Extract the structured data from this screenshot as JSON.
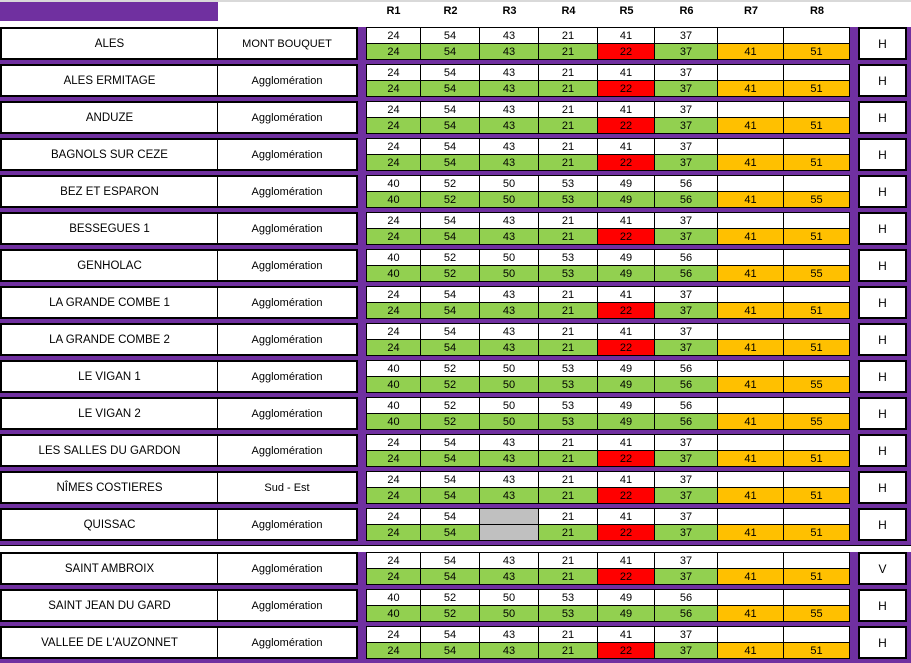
{
  "palette": {
    "green": "#92D050",
    "red": "#FF0000",
    "orange": "#FFC000",
    "gray": "#C0C0C0",
    "white": "#FFFFFF",
    "purple": "#7030A0",
    "border": "#000000"
  },
  "header": {
    "columns": [
      "R1",
      "R2",
      "R3",
      "R4",
      "R5",
      "R6",
      "R7",
      "R8"
    ]
  },
  "section_break_after": "QUISSAC",
  "rows": [
    {
      "name": "ALES",
      "zone": "MONT BOUQUET",
      "polarization": "H",
      "top": [
        "24",
        "54",
        "43",
        "21",
        "41",
        "37",
        "",
        ""
      ],
      "bottom": [
        "24",
        "54",
        "43",
        "21",
        "22",
        "37",
        "41",
        "51"
      ],
      "top_fill": [
        "white",
        "white",
        "white",
        "white",
        "white",
        "white",
        "white",
        "white"
      ],
      "bottom_fill": [
        "green",
        "green",
        "green",
        "green",
        "red",
        "green",
        "orange",
        "orange"
      ]
    },
    {
      "name": "ALES ERMITAGE",
      "zone": "Agglomération",
      "polarization": "H",
      "top": [
        "24",
        "54",
        "43",
        "21",
        "41",
        "37",
        "",
        ""
      ],
      "bottom": [
        "24",
        "54",
        "43",
        "21",
        "22",
        "37",
        "41",
        "51"
      ],
      "top_fill": [
        "white",
        "white",
        "white",
        "white",
        "white",
        "white",
        "white",
        "white"
      ],
      "bottom_fill": [
        "green",
        "green",
        "green",
        "green",
        "red",
        "green",
        "orange",
        "orange"
      ]
    },
    {
      "name": "ANDUZE",
      "zone": "Agglomération",
      "polarization": "H",
      "top": [
        "24",
        "54",
        "43",
        "21",
        "41",
        "37",
        "",
        ""
      ],
      "bottom": [
        "24",
        "54",
        "43",
        "21",
        "22",
        "37",
        "41",
        "51"
      ],
      "top_fill": [
        "white",
        "white",
        "white",
        "white",
        "white",
        "white",
        "white",
        "white"
      ],
      "bottom_fill": [
        "green",
        "green",
        "green",
        "green",
        "red",
        "green",
        "orange",
        "orange"
      ]
    },
    {
      "name": "BAGNOLS SUR CEZE",
      "zone": "Agglomération",
      "polarization": "H",
      "top": [
        "24",
        "54",
        "43",
        "21",
        "41",
        "37",
        "",
        ""
      ],
      "bottom": [
        "24",
        "54",
        "43",
        "21",
        "22",
        "37",
        "41",
        "51"
      ],
      "top_fill": [
        "white",
        "white",
        "white",
        "white",
        "white",
        "white",
        "white",
        "white"
      ],
      "bottom_fill": [
        "green",
        "green",
        "green",
        "green",
        "red",
        "green",
        "orange",
        "orange"
      ]
    },
    {
      "name": "BEZ ET ESPARON",
      "zone": "Agglomération",
      "polarization": "H",
      "top": [
        "40",
        "52",
        "50",
        "53",
        "49",
        "56",
        "",
        ""
      ],
      "bottom": [
        "40",
        "52",
        "50",
        "53",
        "49",
        "56",
        "41",
        "55"
      ],
      "top_fill": [
        "white",
        "white",
        "white",
        "white",
        "white",
        "white",
        "white",
        "white"
      ],
      "bottom_fill": [
        "green",
        "green",
        "green",
        "green",
        "green",
        "green",
        "orange",
        "orange"
      ]
    },
    {
      "name": "BESSEGUES 1",
      "zone": "Agglomération",
      "polarization": "H",
      "top": [
        "24",
        "54",
        "43",
        "21",
        "41",
        "37",
        "",
        ""
      ],
      "bottom": [
        "24",
        "54",
        "43",
        "21",
        "22",
        "37",
        "41",
        "51"
      ],
      "top_fill": [
        "white",
        "white",
        "white",
        "white",
        "white",
        "white",
        "white",
        "white"
      ],
      "bottom_fill": [
        "green",
        "green",
        "green",
        "green",
        "red",
        "green",
        "orange",
        "orange"
      ]
    },
    {
      "name": "GENHOLAC",
      "zone": "Agglomération",
      "polarization": "H",
      "top": [
        "40",
        "52",
        "50",
        "53",
        "49",
        "56",
        "",
        ""
      ],
      "bottom": [
        "40",
        "52",
        "50",
        "53",
        "49",
        "56",
        "41",
        "55"
      ],
      "top_fill": [
        "white",
        "white",
        "white",
        "white",
        "white",
        "white",
        "white",
        "white"
      ],
      "bottom_fill": [
        "green",
        "green",
        "green",
        "green",
        "green",
        "green",
        "orange",
        "orange"
      ]
    },
    {
      "name": "LA GRANDE COMBE 1",
      "zone": "Agglomération",
      "polarization": "H",
      "top": [
        "24",
        "54",
        "43",
        "21",
        "41",
        "37",
        "",
        ""
      ],
      "bottom": [
        "24",
        "54",
        "43",
        "21",
        "22",
        "37",
        "41",
        "51"
      ],
      "top_fill": [
        "white",
        "white",
        "white",
        "white",
        "white",
        "white",
        "white",
        "white"
      ],
      "bottom_fill": [
        "green",
        "green",
        "green",
        "green",
        "red",
        "green",
        "orange",
        "orange"
      ]
    },
    {
      "name": "LA GRANDE COMBE 2",
      "zone": "Agglomération",
      "polarization": "H",
      "top": [
        "24",
        "54",
        "43",
        "21",
        "41",
        "37",
        "",
        ""
      ],
      "bottom": [
        "24",
        "54",
        "43",
        "21",
        "22",
        "37",
        "41",
        "51"
      ],
      "top_fill": [
        "white",
        "white",
        "white",
        "white",
        "white",
        "white",
        "white",
        "white"
      ],
      "bottom_fill": [
        "green",
        "green",
        "green",
        "green",
        "red",
        "green",
        "orange",
        "orange"
      ]
    },
    {
      "name": "LE VIGAN 1",
      "zone": "Agglomération",
      "polarization": "H",
      "top": [
        "40",
        "52",
        "50",
        "53",
        "49",
        "56",
        "",
        ""
      ],
      "bottom": [
        "40",
        "52",
        "50",
        "53",
        "49",
        "56",
        "41",
        "55"
      ],
      "top_fill": [
        "white",
        "white",
        "white",
        "white",
        "white",
        "white",
        "white",
        "white"
      ],
      "bottom_fill": [
        "green",
        "green",
        "green",
        "green",
        "green",
        "green",
        "orange",
        "orange"
      ]
    },
    {
      "name": "LE VIGAN 2",
      "zone": "Agglomération",
      "polarization": "H",
      "top": [
        "40",
        "52",
        "50",
        "53",
        "49",
        "56",
        "",
        ""
      ],
      "bottom": [
        "40",
        "52",
        "50",
        "53",
        "49",
        "56",
        "41",
        "55"
      ],
      "top_fill": [
        "white",
        "white",
        "white",
        "white",
        "white",
        "white",
        "white",
        "white"
      ],
      "bottom_fill": [
        "green",
        "green",
        "green",
        "green",
        "green",
        "green",
        "orange",
        "orange"
      ]
    },
    {
      "name": "LES SALLES DU GARDON",
      "zone": "Agglomération",
      "polarization": "H",
      "top": [
        "24",
        "54",
        "43",
        "21",
        "41",
        "37",
        "",
        ""
      ],
      "bottom": [
        "24",
        "54",
        "43",
        "21",
        "22",
        "37",
        "41",
        "51"
      ],
      "top_fill": [
        "white",
        "white",
        "white",
        "white",
        "white",
        "white",
        "white",
        "white"
      ],
      "bottom_fill": [
        "green",
        "green",
        "green",
        "green",
        "red",
        "green",
        "orange",
        "orange"
      ]
    },
    {
      "name": "NÎMES COSTIERES",
      "zone": "Sud - Est",
      "polarization": "H",
      "top": [
        "24",
        "54",
        "43",
        "21",
        "41",
        "37",
        "",
        ""
      ],
      "bottom": [
        "24",
        "54",
        "43",
        "21",
        "22",
        "37",
        "41",
        "51"
      ],
      "top_fill": [
        "white",
        "white",
        "white",
        "white",
        "white",
        "white",
        "white",
        "white"
      ],
      "bottom_fill": [
        "green",
        "green",
        "green",
        "green",
        "red",
        "green",
        "orange",
        "orange"
      ]
    },
    {
      "name": "QUISSAC",
      "zone": "Agglomération",
      "polarization": "H",
      "top": [
        "24",
        "54",
        "",
        "21",
        "41",
        "37",
        "",
        ""
      ],
      "bottom": [
        "24",
        "54",
        "",
        "21",
        "22",
        "37",
        "41",
        "51"
      ],
      "top_fill": [
        "white",
        "white",
        "gray",
        "white",
        "white",
        "white",
        "white",
        "white"
      ],
      "bottom_fill": [
        "green",
        "green",
        "gray",
        "green",
        "red",
        "green",
        "orange",
        "orange"
      ]
    },
    {
      "name": "SAINT AMBROIX",
      "zone": "Agglomération",
      "polarization": "V",
      "top": [
        "24",
        "54",
        "43",
        "21",
        "41",
        "37",
        "",
        ""
      ],
      "bottom": [
        "24",
        "54",
        "43",
        "21",
        "22",
        "37",
        "41",
        "51"
      ],
      "top_fill": [
        "white",
        "white",
        "white",
        "white",
        "white",
        "white",
        "white",
        "white"
      ],
      "bottom_fill": [
        "green",
        "green",
        "green",
        "green",
        "red",
        "green",
        "orange",
        "orange"
      ]
    },
    {
      "name": "SAINT JEAN DU GARD",
      "zone": "Agglomération",
      "polarization": "H",
      "top": [
        "40",
        "52",
        "50",
        "53",
        "49",
        "56",
        "",
        ""
      ],
      "bottom": [
        "40",
        "52",
        "50",
        "53",
        "49",
        "56",
        "41",
        "55"
      ],
      "top_fill": [
        "white",
        "white",
        "white",
        "white",
        "white",
        "white",
        "white",
        "white"
      ],
      "bottom_fill": [
        "green",
        "green",
        "green",
        "green",
        "green",
        "green",
        "orange",
        "orange"
      ]
    },
    {
      "name": "VALLEE DE L'AUZONNET",
      "zone": "Agglomération",
      "polarization": "H",
      "top": [
        "24",
        "54",
        "43",
        "21",
        "41",
        "37",
        "",
        ""
      ],
      "bottom": [
        "24",
        "54",
        "43",
        "21",
        "22",
        "37",
        "41",
        "51"
      ],
      "top_fill": [
        "white",
        "white",
        "white",
        "white",
        "white",
        "white",
        "white",
        "white"
      ],
      "bottom_fill": [
        "green",
        "green",
        "green",
        "green",
        "red",
        "green",
        "orange",
        "orange"
      ]
    }
  ]
}
